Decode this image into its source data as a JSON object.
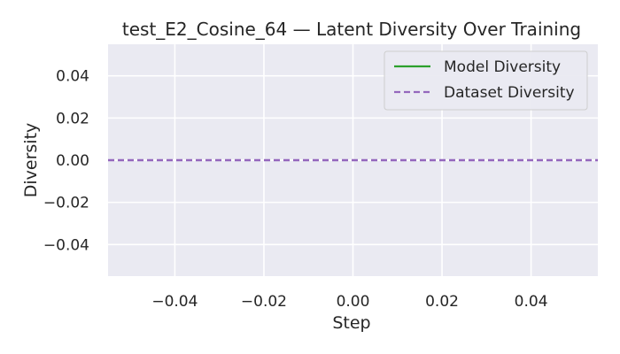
{
  "chart_data": {
    "type": "line",
    "title": "test_E2_Cosine_64 — Latent Diversity Over Training",
    "xlabel": "Step",
    "ylabel": "Diversity",
    "xlim": [
      -0.055,
      0.055
    ],
    "ylim": [
      -0.055,
      0.055
    ],
    "xticks": [
      -0.04,
      -0.02,
      0.0,
      0.02,
      0.04
    ],
    "yticks": [
      -0.04,
      -0.02,
      0.0,
      0.02,
      0.04
    ],
    "xtick_labels": [
      "−0.04",
      "−0.02",
      "0.00",
      "0.02",
      "0.04"
    ],
    "ytick_labels": [
      "−0.04",
      "−0.02",
      "0.00",
      "0.02",
      "0.04"
    ],
    "grid": true,
    "legend_position": "top-right",
    "background_color": "#eaeaf2",
    "grid_color": "#ffffff",
    "series": [
      {
        "name": "Model Diversity",
        "style": "solid",
        "color": "#2ca02c",
        "x": [],
        "y": []
      },
      {
        "name": "Dataset Diversity",
        "style": "dashed",
        "color": "#9467bd",
        "type": "hline",
        "y": 0.0
      }
    ]
  }
}
